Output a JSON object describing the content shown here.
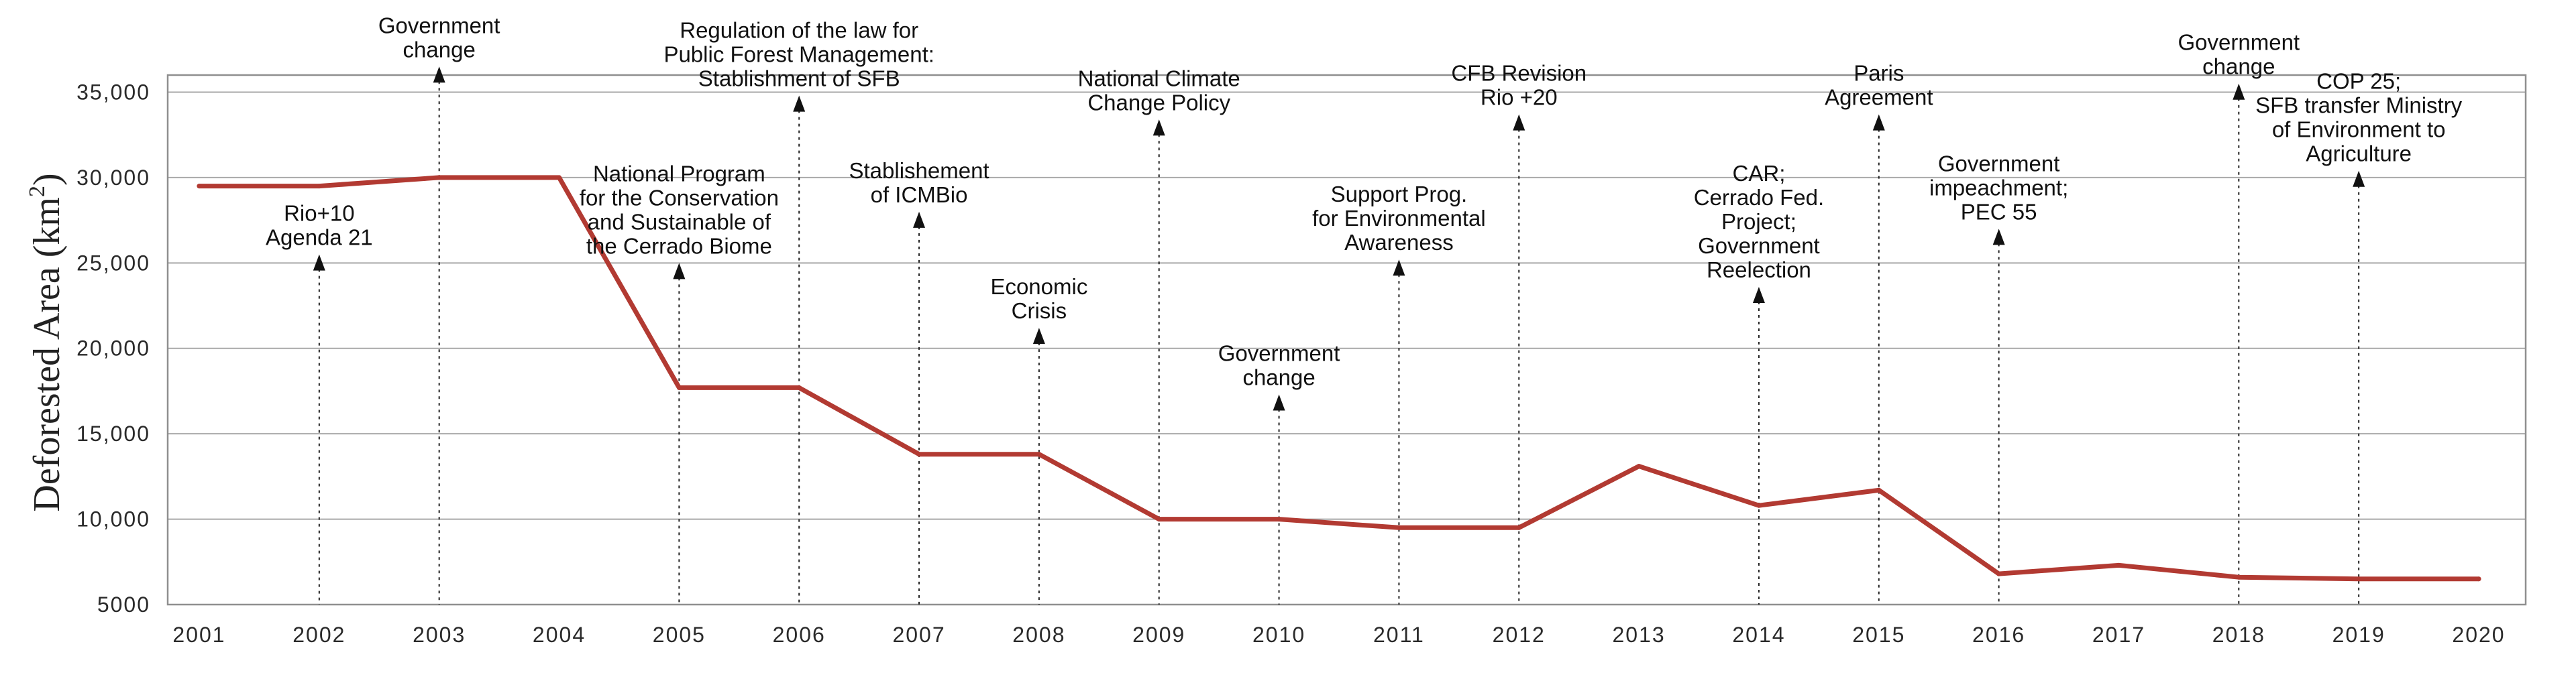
{
  "chart_data": {
    "type": "line",
    "title": "",
    "xlabel": "",
    "ylabel": "Deforested Area (km",
    "ylabel_superscript": "2",
    "ylabel_close": ")",
    "ylim": [
      5000,
      36000
    ],
    "grid": true,
    "x": [
      "2001",
      "2002",
      "2003",
      "2004",
      "2005",
      "2006",
      "2007",
      "2008",
      "2009",
      "2010",
      "2011",
      "2012",
      "2013",
      "2014",
      "2015",
      "2016",
      "2017",
      "2018",
      "2019",
      "2020"
    ],
    "yticks": [
      {
        "value": 5000,
        "label": "5000"
      },
      {
        "value": 10000,
        "label": "10,000"
      },
      {
        "value": 15000,
        "label": "15,000"
      },
      {
        "value": 20000,
        "label": "20,000"
      },
      {
        "value": 25000,
        "label": "25,000"
      },
      {
        "value": 30000,
        "label": "30,000"
      },
      {
        "value": 35000,
        "label": "35,000"
      }
    ],
    "series": [
      {
        "name": "Deforested Area",
        "color": "#b23a32",
        "values": [
          29500,
          29500,
          30000,
          30000,
          17700,
          17700,
          13800,
          13800,
          10000,
          10000,
          9500,
          9500,
          13100,
          10800,
          11700,
          6800,
          7300,
          6600,
          6500,
          6500
        ]
      }
    ],
    "annotations": [
      {
        "x": 2002,
        "value": 25500,
        "lines": [
          "Rio+10",
          "Agenda 21"
        ]
      },
      {
        "x": 2003,
        "value": 36500,
        "lines": [
          "Government",
          "change"
        ]
      },
      {
        "x": 2005,
        "value": 25000,
        "lines": [
          "National Program",
          "for the Conservation",
          "and Sustainable of",
          "the Cerrado Biome"
        ]
      },
      {
        "x": 2006,
        "value": 34800,
        "lines": [
          "Regulation of the law for",
          "Public Forest Management:",
          "Stablishment of SFB"
        ]
      },
      {
        "x": 2007,
        "value": 28000,
        "lines": [
          "Stablishement",
          "of ICMBio"
        ]
      },
      {
        "x": 2008,
        "value": 21200,
        "lines": [
          "Economic",
          "Crisis"
        ]
      },
      {
        "x": 2009,
        "value": 33400,
        "lines": [
          "National Climate",
          "Change Policy"
        ]
      },
      {
        "x": 2010,
        "value": 17300,
        "lines": [
          "Government",
          "change"
        ]
      },
      {
        "x": 2011,
        "value": 25200,
        "lines": [
          "Support Prog.",
          "for Environmental",
          "Awareness"
        ]
      },
      {
        "x": 2012,
        "value": 33700,
        "lines": [
          "CFB Revision",
          "Rio +20"
        ]
      },
      {
        "x": 2014,
        "value": 23600,
        "lines": [
          "CAR;",
          "Cerrado Fed.",
          "Project;",
          "Government",
          "Reelection"
        ]
      },
      {
        "x": 2015,
        "value": 33700,
        "lines": [
          "Paris",
          "Agreement"
        ]
      },
      {
        "x": 2016,
        "value": 27000,
        "lines": [
          "Government",
          "impeachment;",
          "PEC 55"
        ]
      },
      {
        "x": 2018,
        "value": 35500,
        "lines": [
          "Government",
          "change"
        ]
      },
      {
        "x": 2019,
        "value": 30400,
        "lines": [
          "COP 25;",
          "SFB transfer Ministry",
          "of Environment to",
          "Agriculture"
        ]
      }
    ]
  }
}
